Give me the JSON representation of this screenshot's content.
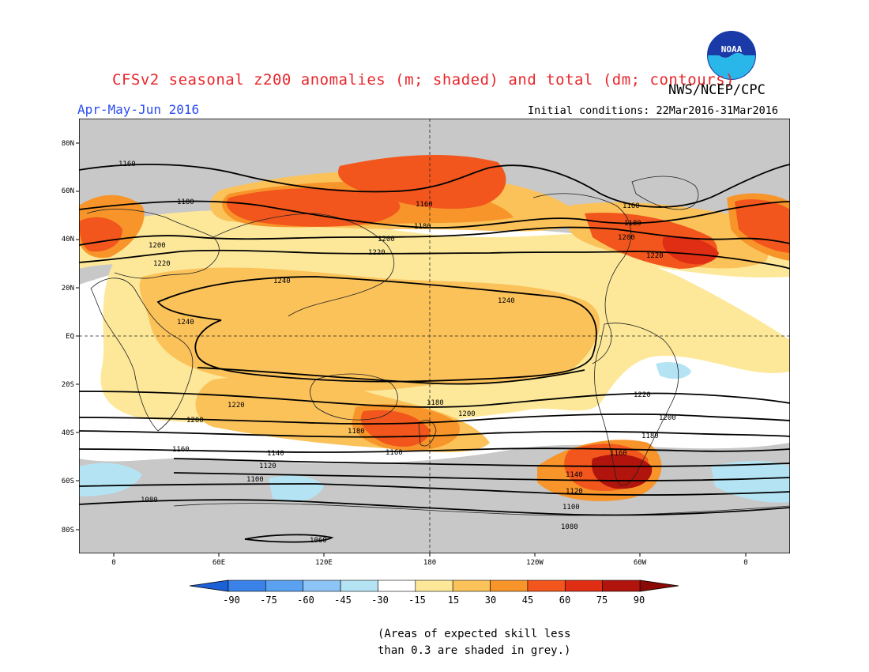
{
  "header": {
    "title": "CFSv2 seasonal z200 anomalies (m; shaded) and total (dm; contours)",
    "organization": "NWS/NCEP/CPC",
    "period": "Apr-May-Jun 2016",
    "initial_conditions": "Initial conditions: 22Mar2016-31Mar2016",
    "logo_text": "NOAA"
  },
  "map": {
    "lat_labels": [
      "80N",
      "60N",
      "40N",
      "20N",
      "EQ",
      "20S",
      "40S",
      "60S",
      "80S"
    ],
    "lon_labels": [
      "0",
      "60E",
      "120E",
      "180",
      "120W",
      "60W",
      "0"
    ],
    "contour_labels": [
      "1160",
      "1180",
      "1200",
      "1220",
      "1240",
      "1240",
      "1240",
      "1220",
      "1200",
      "1180",
      "1160",
      "1140",
      "1120",
      "1100",
      "1080",
      "1060",
      "1160",
      "1180",
      "1200",
      "1220",
      "1160",
      "1180",
      "1200",
      "1220",
      "1200",
      "1180",
      "1160",
      "1140",
      "1120",
      "1100",
      "1080",
      "1220",
      "1200",
      "1180",
      "1160"
    ],
    "grey_meaning": "Areas of expected skill less than 0.3"
  },
  "colorbar": {
    "labels": [
      "-90",
      "-75",
      "-60",
      "-45",
      "-30",
      "-15",
      "15",
      "30",
      "45",
      "60",
      "75",
      "90"
    ],
    "colors": [
      "#1c60d8",
      "#3a82e8",
      "#5aa2f0",
      "#8cc4f6",
      "#b4e4f4",
      "#ffffff",
      "#fde89a",
      "#fbc25a",
      "#f7952a",
      "#f2561c",
      "#e02e14",
      "#b0140c"
    ]
  },
  "footnote": {
    "line1": "(Areas of expected skill less",
    "line2": "than 0.3 are shaded in grey.)"
  }
}
